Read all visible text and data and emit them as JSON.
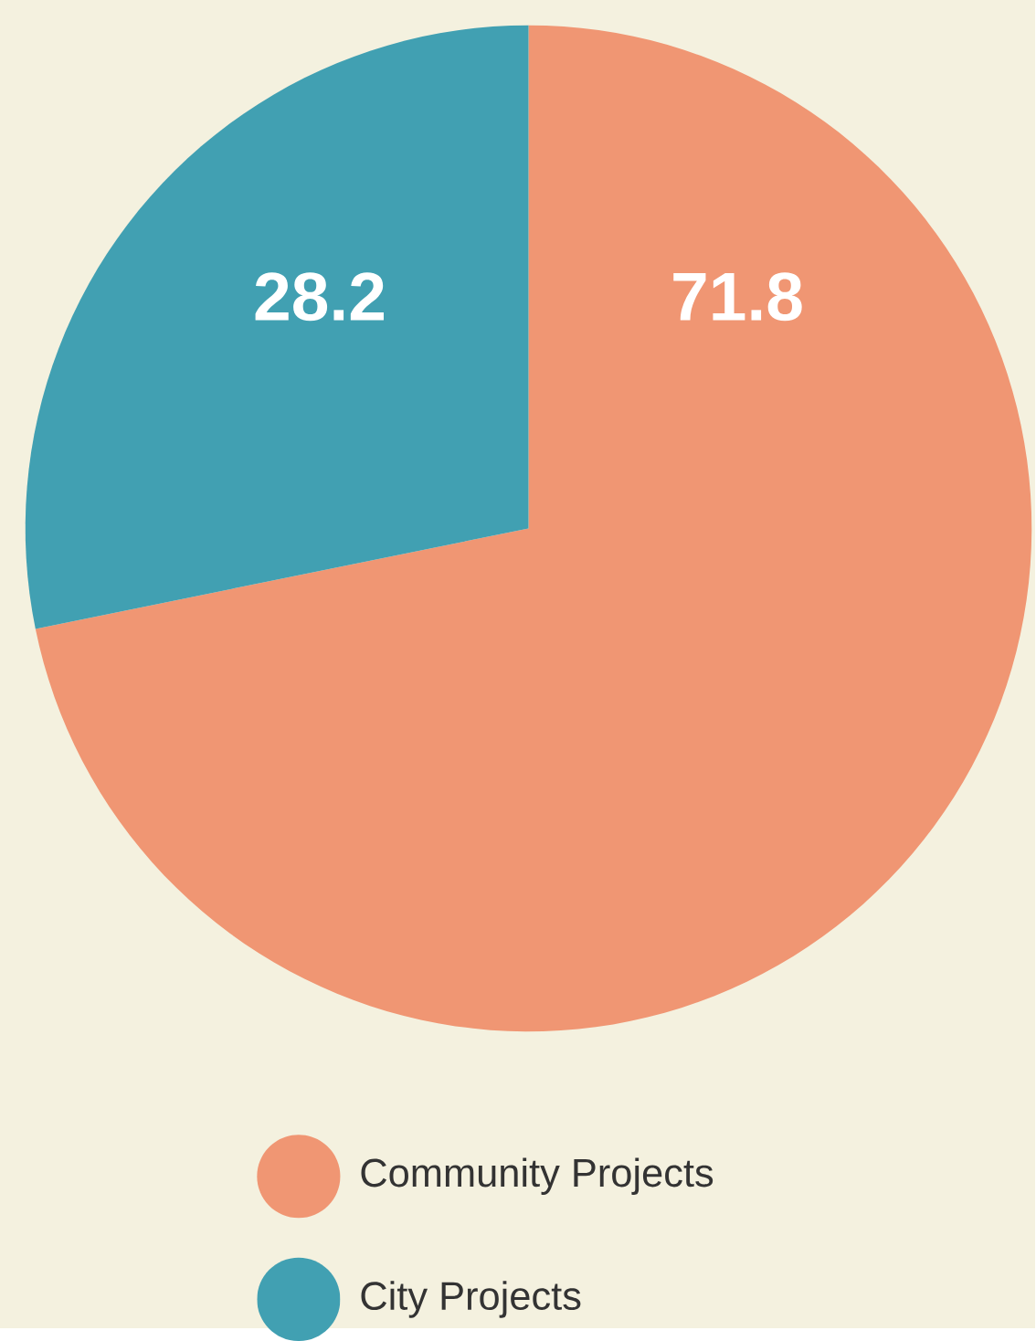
{
  "chart_data": {
    "type": "pie",
    "categories": [
      "Community Projects",
      "City Projects"
    ],
    "values": [
      71.8,
      28.2
    ],
    "colors": [
      "#f09673",
      "#41a0b2"
    ],
    "data_labels": true,
    "legend": "bottom"
  }
}
